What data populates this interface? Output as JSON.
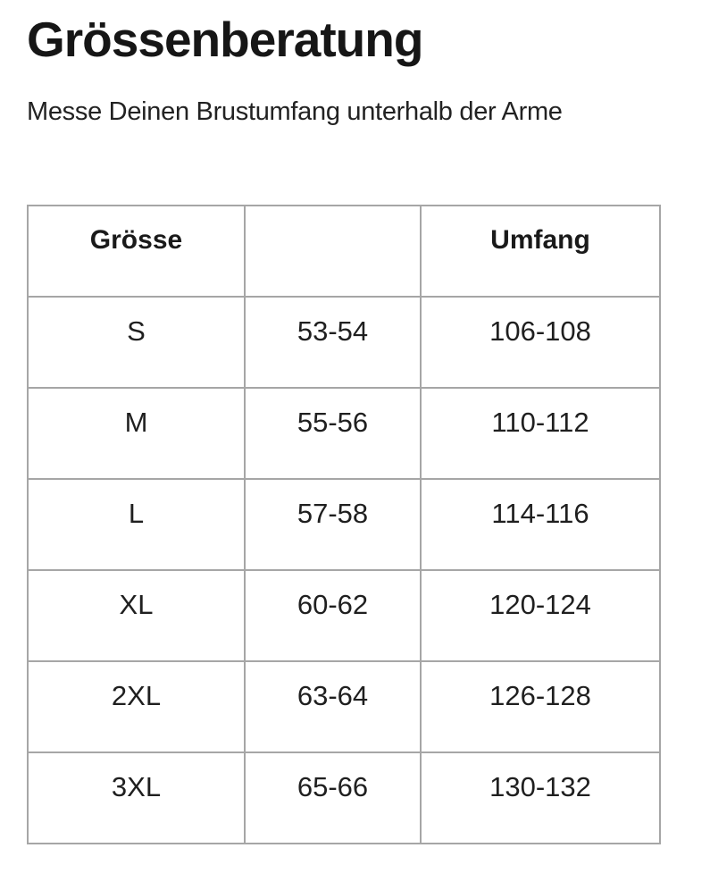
{
  "title": "Grössenberatung",
  "subtitle": "Messe Deinen Brustumfang unterhalb der Arme",
  "table": {
    "headers": [
      "Grösse",
      "",
      "Umfang"
    ],
    "rows": [
      [
        "S",
        "53-54",
        "106-108"
      ],
      [
        "M",
        "55-56",
        "110-112"
      ],
      [
        "L",
        "57-58",
        "114-116"
      ],
      [
        "XL",
        "60-62",
        "120-124"
      ],
      [
        "2XL",
        "63-64",
        "126-128"
      ],
      [
        "3XL",
        "65-66",
        "130-132"
      ]
    ]
  },
  "colors": {
    "text": "#1d1d1d",
    "table_border": "#a6a6a6",
    "background": "#ffffff"
  }
}
